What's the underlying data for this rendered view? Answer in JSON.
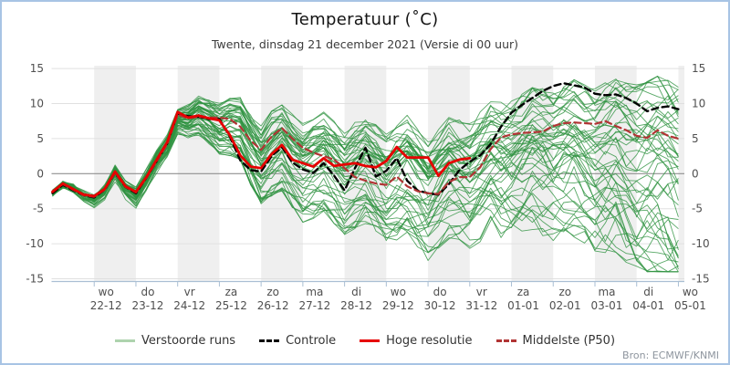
{
  "header": {
    "title": "Temperatuur (˚C)",
    "subtitle": "Twente, dinsdag 21 december 2021 (Versie di 00 uur)"
  },
  "attribution": "Bron: ECMWF/KNMI",
  "axes": {
    "y_ticks": [
      15,
      10,
      5,
      0,
      -5,
      -10,
      -15
    ],
    "ylim": [
      -15.4,
      15.4
    ],
    "x_ticks": [
      {
        "day": "wo",
        "date": "22-12"
      },
      {
        "day": "do",
        "date": "23-12"
      },
      {
        "day": "vr",
        "date": "24-12"
      },
      {
        "day": "za",
        "date": "25-12"
      },
      {
        "day": "zo",
        "date": "26-12"
      },
      {
        "day": "ma",
        "date": "27-12"
      },
      {
        "day": "di",
        "date": "28-12"
      },
      {
        "day": "wo",
        "date": "29-12"
      },
      {
        "day": "do",
        "date": "30-12"
      },
      {
        "day": "vr",
        "date": "31-12"
      },
      {
        "day": "za",
        "date": "01-01"
      },
      {
        "day": "zo",
        "date": "02-01"
      },
      {
        "day": "ma",
        "date": "03-01"
      },
      {
        "day": "di",
        "date": "04-01"
      },
      {
        "day": "wo",
        "date": "05-01"
      }
    ]
  },
  "legend": {
    "items": [
      {
        "label": "Verstoorde runs",
        "color": "#aed3ae",
        "style": "solid"
      },
      {
        "label": "Controle",
        "color": "#000000",
        "style": "dashed"
      },
      {
        "label": "Hoge resolutie",
        "color": "#e60000",
        "style": "solid"
      },
      {
        "label": "Middelste (P50)",
        "color": "#b13434",
        "style": "dashed"
      }
    ]
  },
  "colors": {
    "border": "#a8c4e4",
    "band": "#efefef",
    "grid": "#e0e0e0",
    "zero_line": "#909090",
    "axis": "#aabfd4",
    "tick_label": "#4f4f4f",
    "ensemble": "#2e9240",
    "controle": "#000000",
    "hoge_resolutie": "#e60000",
    "middelste": "#b13434"
  },
  "chart_data": {
    "type": "line",
    "title": "Temperatuur (˚C)",
    "xlabel": "",
    "ylabel": "Temperatuur (˚C)",
    "x_unit": "days since 2021-12-21 00:00",
    "days_total": 15,
    "t_step": 0.25,
    "ylim": [
      -15.4,
      15.4
    ],
    "grid": true,
    "legend_position": "bottom",
    "series": [
      {
        "name": "Controle",
        "color": "#000000",
        "dash": true,
        "t_start": 0,
        "t_step": 0.25,
        "values": [
          -2.8,
          -1.6,
          -2.4,
          -3.1,
          -3.4,
          -2.3,
          0.1,
          -1.9,
          -2.8,
          -0.6,
          1.8,
          4.3,
          8.6,
          8.2,
          8.1,
          7.8,
          7.8,
          5.3,
          1.9,
          0.5,
          0.3,
          2.5,
          3.8,
          1.6,
          0.6,
          0.1,
          1.5,
          -0.3,
          -2.4,
          0.8,
          3.7,
          -0.4,
          0.4,
          2.2,
          -1.0,
          -2.4,
          -2.8,
          -3.0,
          -1.5,
          0.5,
          1.7,
          2.6,
          4.2,
          6.7,
          8.7,
          9.8,
          10.8,
          11.8,
          12.5,
          12.9,
          12.6,
          12.3,
          11.4,
          11.2,
          11.3,
          10.8,
          10.0,
          8.9,
          9.4,
          9.6,
          9.2
        ]
      },
      {
        "name": "Hoge resolutie",
        "color": "#e60000",
        "dash": false,
        "t_start": 0,
        "t_step": 0.25,
        "values": [
          -2.6,
          -1.4,
          -2.2,
          -3.0,
          -3.2,
          -2.2,
          0.3,
          -1.8,
          -2.6,
          -0.5,
          2.0,
          4.5,
          8.8,
          8.0,
          8.3,
          7.9,
          7.6,
          5.5,
          2.6,
          1.0,
          0.8,
          2.8,
          4.1,
          2.0,
          1.5,
          1.0,
          2.2,
          1.1,
          1.3,
          1.5,
          1.1,
          0.9,
          1.8,
          3.8,
          2.3,
          2.3,
          2.3,
          -0.3,
          1.5,
          2.0,
          2.2
        ]
      },
      {
        "name": "Middelste (P50)",
        "color": "#b13434",
        "dash": true,
        "t_start": 0,
        "t_step": 0.25,
        "values": [
          -2.5,
          -1.5,
          -2.3,
          -3.1,
          -3.3,
          -2.3,
          0.1,
          -1.9,
          -2.7,
          -0.6,
          1.8,
          4.2,
          8.4,
          7.9,
          8.1,
          8.0,
          8.0,
          7.8,
          6.7,
          4.7,
          3.4,
          5.3,
          6.5,
          5.0,
          3.7,
          3.0,
          2.5,
          2.0,
          0.8,
          -0.5,
          -1.0,
          -1.4,
          -1.6,
          -0.4,
          -1.8,
          -2.5,
          -2.8,
          -2.9,
          -1.2,
          -0.5,
          -0.5,
          0.9,
          3.5,
          5.2,
          5.6,
          5.8,
          5.9,
          6.0,
          6.8,
          7.2,
          7.3,
          7.2,
          7.1,
          7.5,
          6.8,
          6.2,
          5.4,
          5.1,
          6.2,
          5.4,
          5.0
        ]
      }
    ],
    "ensemble": {
      "name": "Verstoorde runs",
      "count": 50,
      "seed": 20211221,
      "color": "#2e9240",
      "center_daily": [
        -2.6,
        -3.1,
        -2.5,
        8.3,
        6.5,
        3.5,
        2.5,
        1.5,
        0.8,
        -0.8,
        0.8,
        3.0,
        4.0,
        3.5,
        2.5,
        1.5
      ],
      "spread_daily": [
        0.5,
        0.8,
        1.0,
        1.2,
        2.4,
        3.8,
        4.8,
        5.2,
        5.5,
        5.8,
        6.2,
        6.8,
        7.4,
        8.0,
        9.2,
        10.4
      ],
      "diurnal_daily": [
        0.25,
        0.3,
        0.3,
        0.5,
        0.9,
        1.1,
        1.1,
        1.2,
        1.4,
        1.2,
        0.9,
        0.7,
        0.7,
        0.7,
        0.7,
        0.7
      ],
      "neg_scale": 1.5,
      "clamp": [
        -14,
        13.9
      ]
    },
    "shaded_day_bands": [
      1,
      3,
      5,
      7,
      9,
      11,
      13,
      15
    ]
  }
}
